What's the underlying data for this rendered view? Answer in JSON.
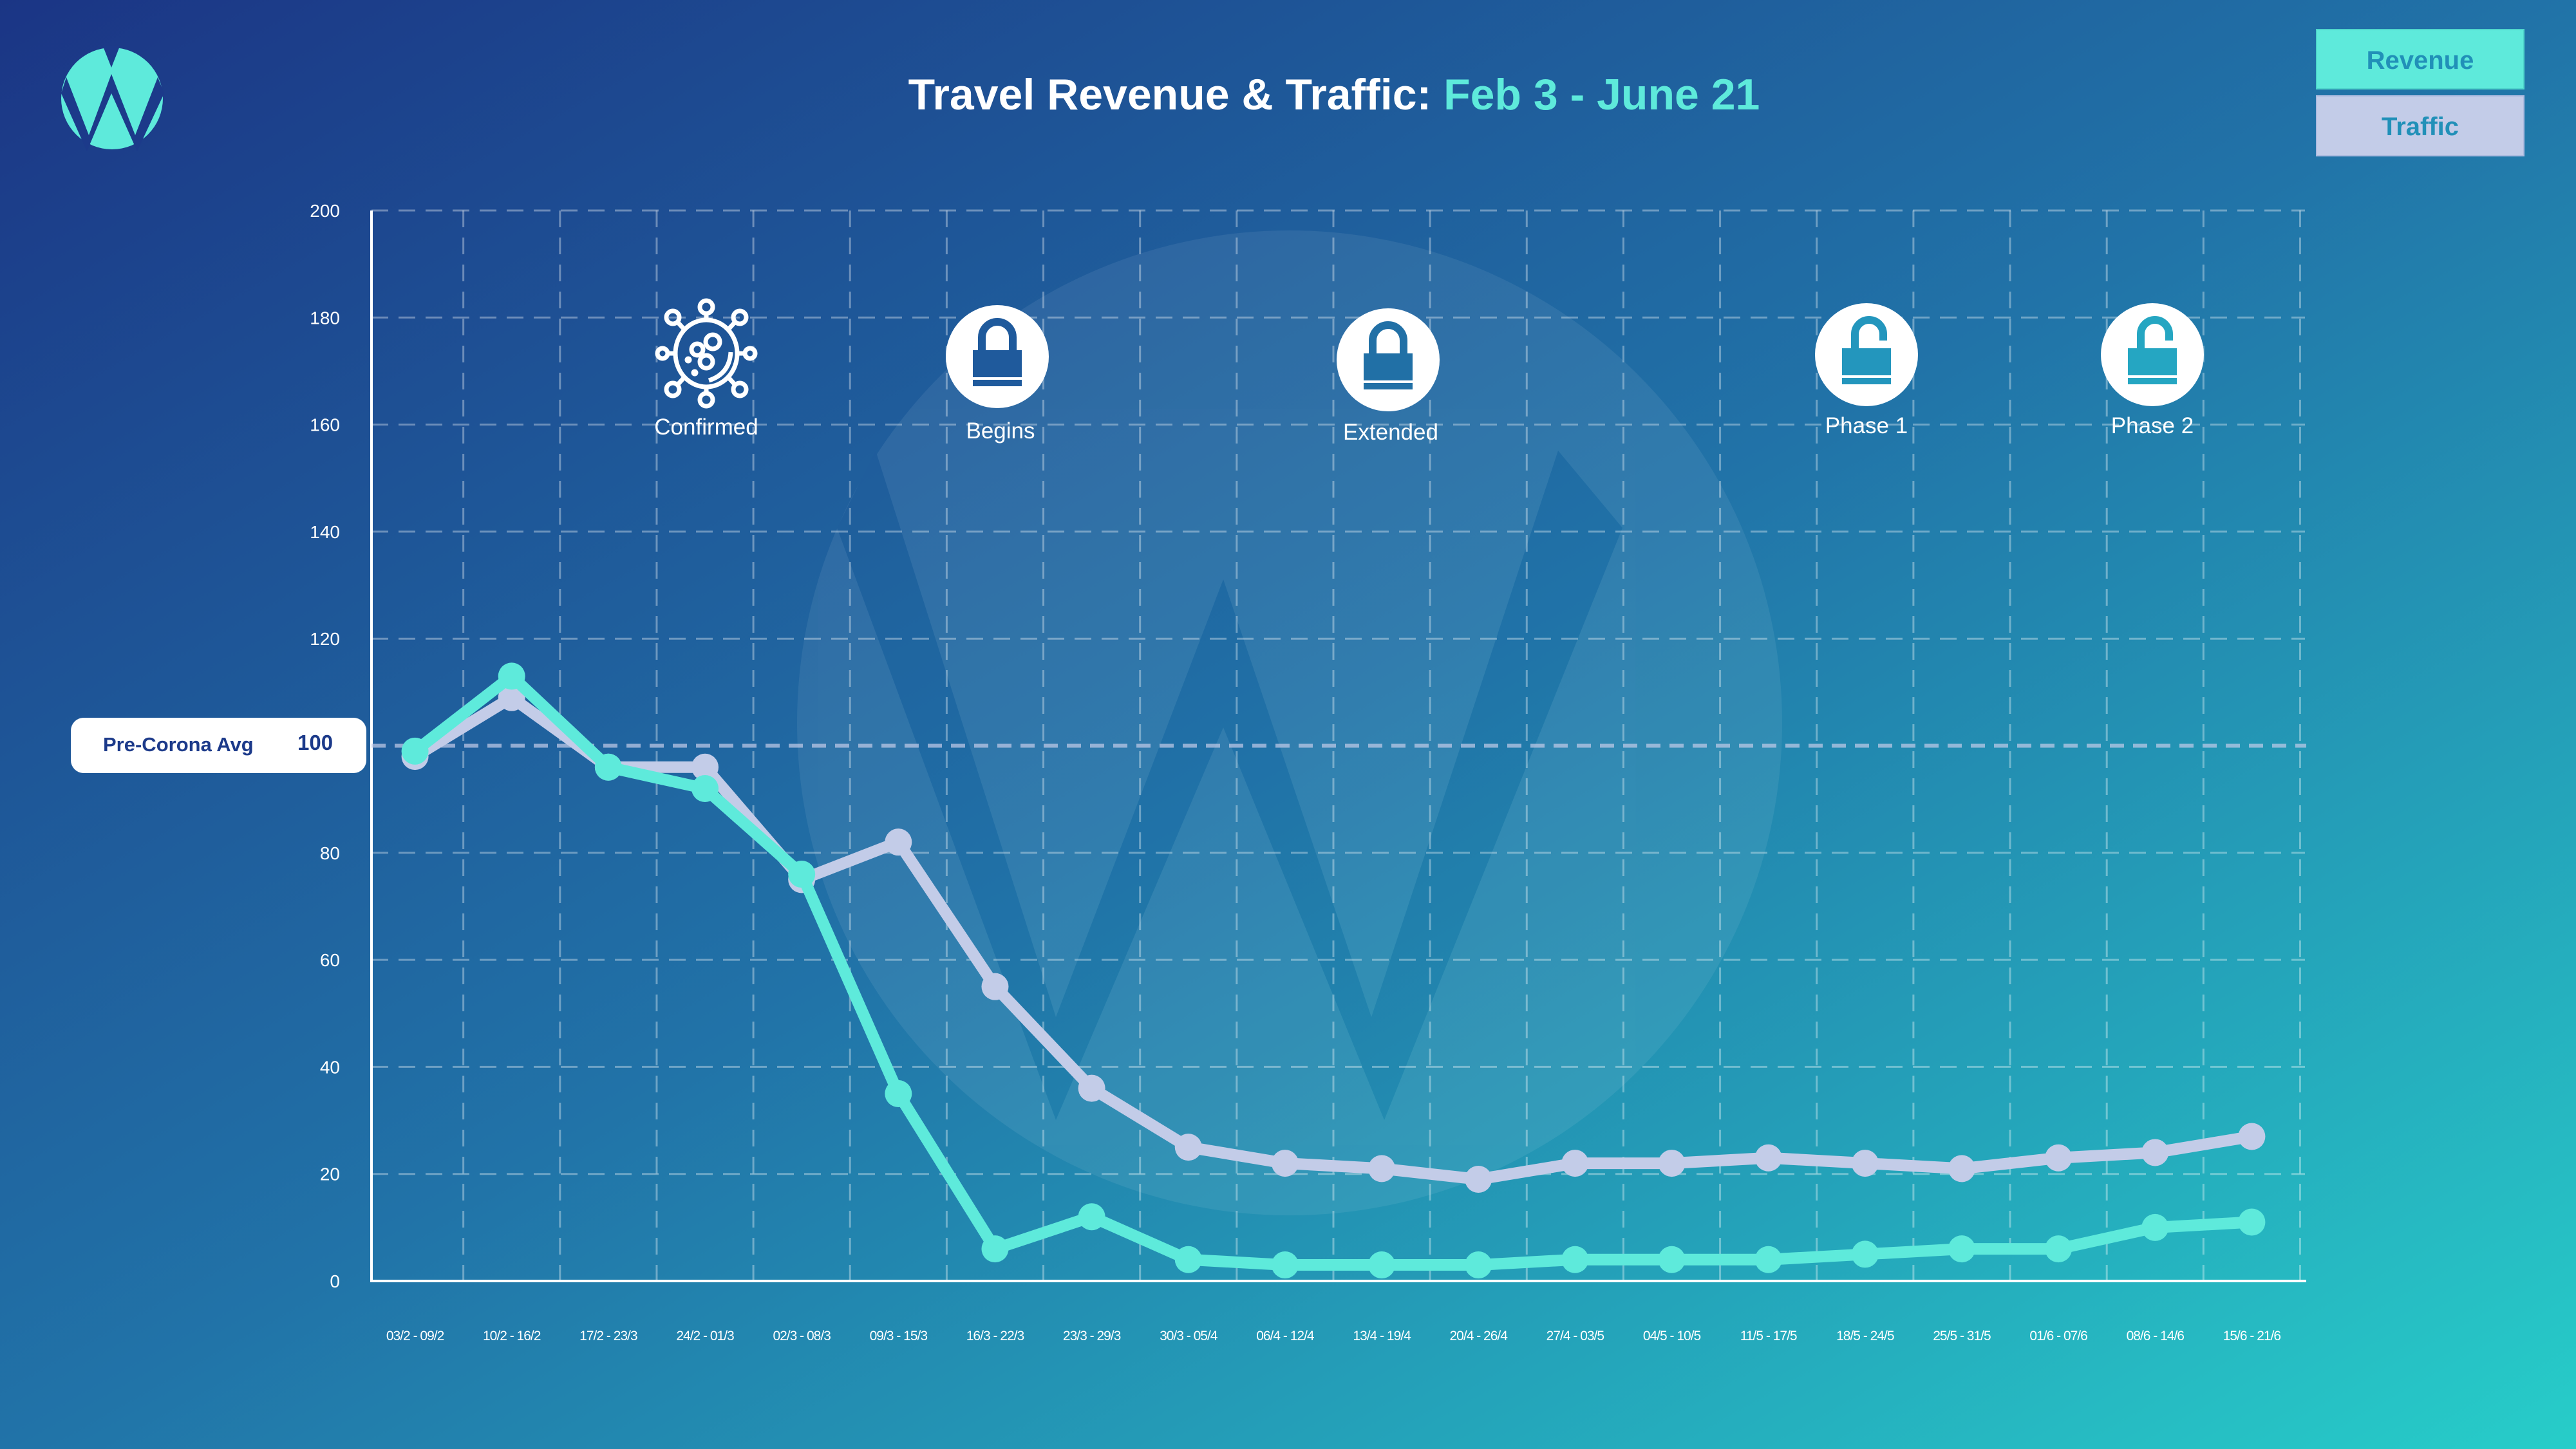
{
  "header": {
    "title_main": "Travel Revenue & Traffic: ",
    "title_range": "Feb 3 - June 21"
  },
  "legend": {
    "revenue_label": "Revenue",
    "traffic_label": "Traffic"
  },
  "reference": {
    "label": "Pre-Corona Avg",
    "value_label": "100"
  },
  "events": [
    {
      "label": "Confirmed",
      "icon": "virus-icon",
      "week_index": 3
    },
    {
      "label": "Begins",
      "icon": "lock-icon",
      "week_index": 6
    },
    {
      "label": "Extended",
      "icon": "lock-icon",
      "week_index": 10
    },
    {
      "label": "Phase 1",
      "icon": "unlock-icon",
      "week_index": 15
    },
    {
      "label": "Phase 2",
      "icon": "unlock-icon",
      "week_index": 18
    }
  ],
  "colors": {
    "revenue": "#5eeadb",
    "traffic": "#c3cce8",
    "bg_start": "#1b3585",
    "bg_end": "#27cdc9",
    "title_accent": "#5eeadb"
  },
  "chart_data": {
    "type": "line",
    "title": "Travel Revenue & Traffic: Feb 3 - June 21",
    "xlabel": "",
    "ylabel": "",
    "ylim": [
      0,
      200
    ],
    "yticks": [
      0,
      20,
      40,
      60,
      80,
      100,
      120,
      140,
      160,
      180,
      200
    ],
    "grid": true,
    "legend_position": "top-right",
    "reference_line": {
      "label": "Pre-Corona Avg",
      "value": 100
    },
    "categories": [
      "03/2 - 09/2",
      "10/2 - 16/2",
      "17/2 - 23/3",
      "24/2 - 01/3",
      "02/3 - 08/3",
      "09/3 - 15/3",
      "16/3 - 22/3",
      "23/3 - 29/3",
      "30/3 - 05/4",
      "06/4 - 12/4",
      "13/4 - 19/4",
      "20/4 - 26/4",
      "27/4 - 03/5",
      "04/5 - 10/5",
      "11/5 - 17/5",
      "18/5 - 24/5",
      "25/5 - 31/5",
      "01/6 - 07/6",
      "08/6 - 14/6",
      "15/6 - 21/6"
    ],
    "series": [
      {
        "name": "Revenue",
        "values": [
          99,
          113,
          96,
          92,
          76,
          35,
          6,
          12,
          4,
          3,
          3,
          3,
          4,
          4,
          4,
          5,
          6,
          6,
          10,
          11
        ]
      },
      {
        "name": "Traffic",
        "values": [
          98,
          109,
          96,
          96,
          75,
          82,
          55,
          36,
          25,
          22,
          21,
          19,
          22,
          22,
          23,
          22,
          21,
          23,
          24,
          27
        ]
      }
    ]
  }
}
